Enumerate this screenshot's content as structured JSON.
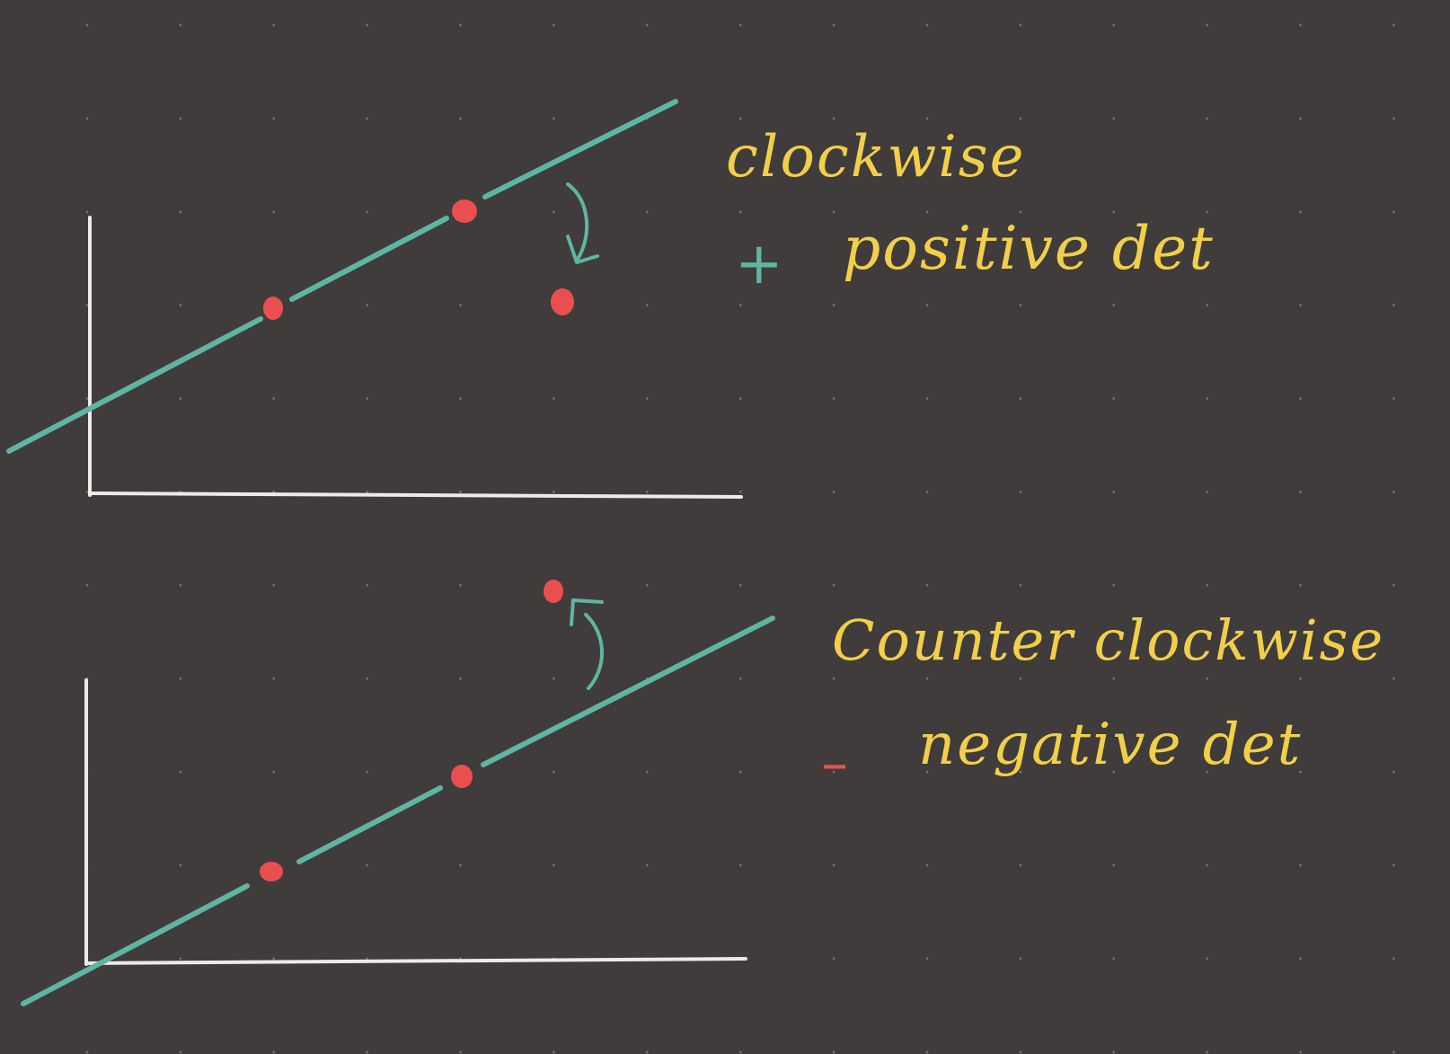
{
  "colors": {
    "background": "#403c3b",
    "grid_dots": "#7a7573",
    "axes": "#ecebe8",
    "line_and_arrows": "#5fb5a4",
    "points": "#ea4f4f",
    "handwriting": "#f2cf4a"
  },
  "icons": {
    "clockwise_arrow": "curved-arrow-clockwise-icon",
    "counterclockwise_arrow": "curved-arrow-counterclockwise-icon"
  },
  "top_panel": {
    "sign": "+",
    "line1": "clockwise",
    "line2": "positive det"
  },
  "bottom_panel": {
    "sign": "–",
    "line1": "Counter clockwise",
    "line2": "negative det"
  }
}
